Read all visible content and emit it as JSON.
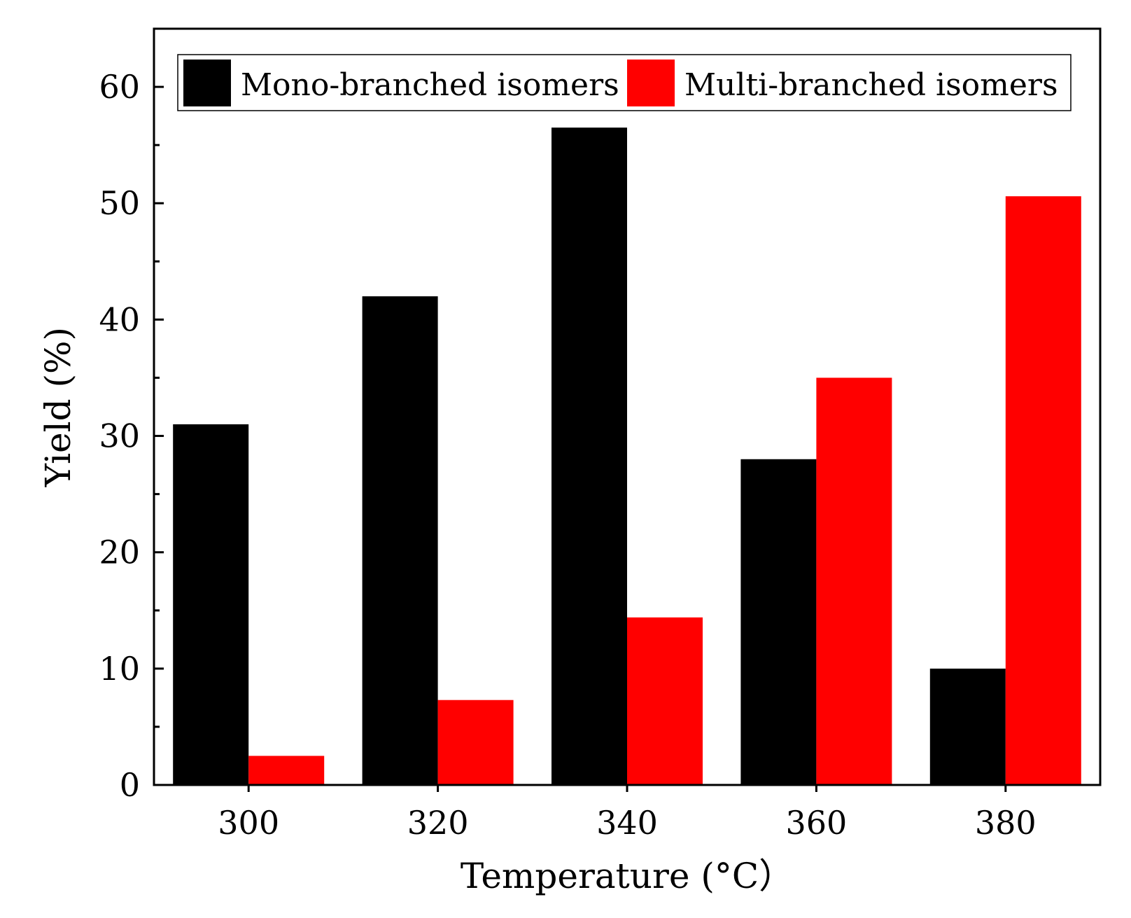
{
  "chart_data": {
    "type": "bar",
    "title": "",
    "xlabel": "Temperature (°C）",
    "ylabel": "Yield (%)",
    "categories": [
      "300",
      "320",
      "340",
      "360",
      "380"
    ],
    "ylim": [
      0,
      65
    ],
    "yticks": [
      "0",
      "10",
      "20",
      "30",
      "40",
      "50",
      "60"
    ],
    "series": [
      {
        "name": "Mono-branched isomers",
        "color": "#000000",
        "values": [
          31,
          42,
          56.5,
          28,
          10
        ]
      },
      {
        "name": "Multi-branched isomers",
        "color": "#ff0000",
        "values": [
          2.5,
          7.3,
          14.4,
          35,
          50.6
        ]
      }
    ],
    "legend": "top"
  }
}
